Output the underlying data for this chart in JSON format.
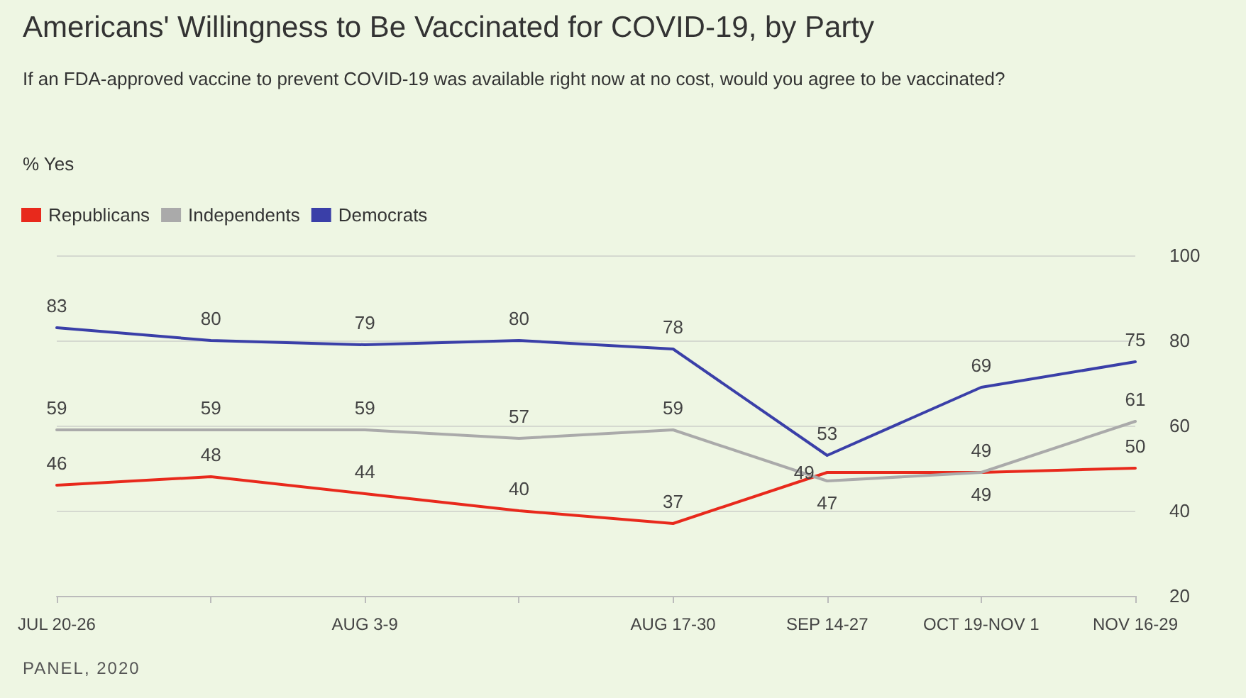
{
  "chart_data": {
    "type": "line",
    "title": "Americans' Willingness to Be Vaccinated for COVID-19, by Party",
    "subtitle": "If an FDA-approved vaccine to prevent COVID-19 was available right now at no cost, would you agree to be vaccinated?",
    "ylabel": "% Yes",
    "annotations": [
      "PANEL, 2020"
    ],
    "categories": [
      "JUL 20-26",
      null,
      "AUG 3-9",
      null,
      "AUG 17-30",
      "SEP 14-27",
      "OCT 19-NOV 1",
      "NOV 16-29"
    ],
    "series": [
      {
        "name": "Republicans",
        "color": "#e8291c",
        "values": [
          46,
          48,
          44,
          40,
          37,
          49,
          49,
          50
        ]
      },
      {
        "name": "Independents",
        "color": "#aaaaaa",
        "values": [
          59,
          59,
          59,
          57,
          59,
          47,
          49,
          61
        ]
      },
      {
        "name": "Democrats",
        "color": "#3a3fa8",
        "values": [
          83,
          80,
          79,
          80,
          78,
          53,
          69,
          75
        ]
      }
    ],
    "ylim": [
      20,
      100
    ],
    "yticks": [
      20,
      40,
      60,
      80,
      100
    ],
    "grid": "y",
    "legend": "top left",
    "data_labels": true,
    "marker": "none",
    "line_style": "solid"
  }
}
